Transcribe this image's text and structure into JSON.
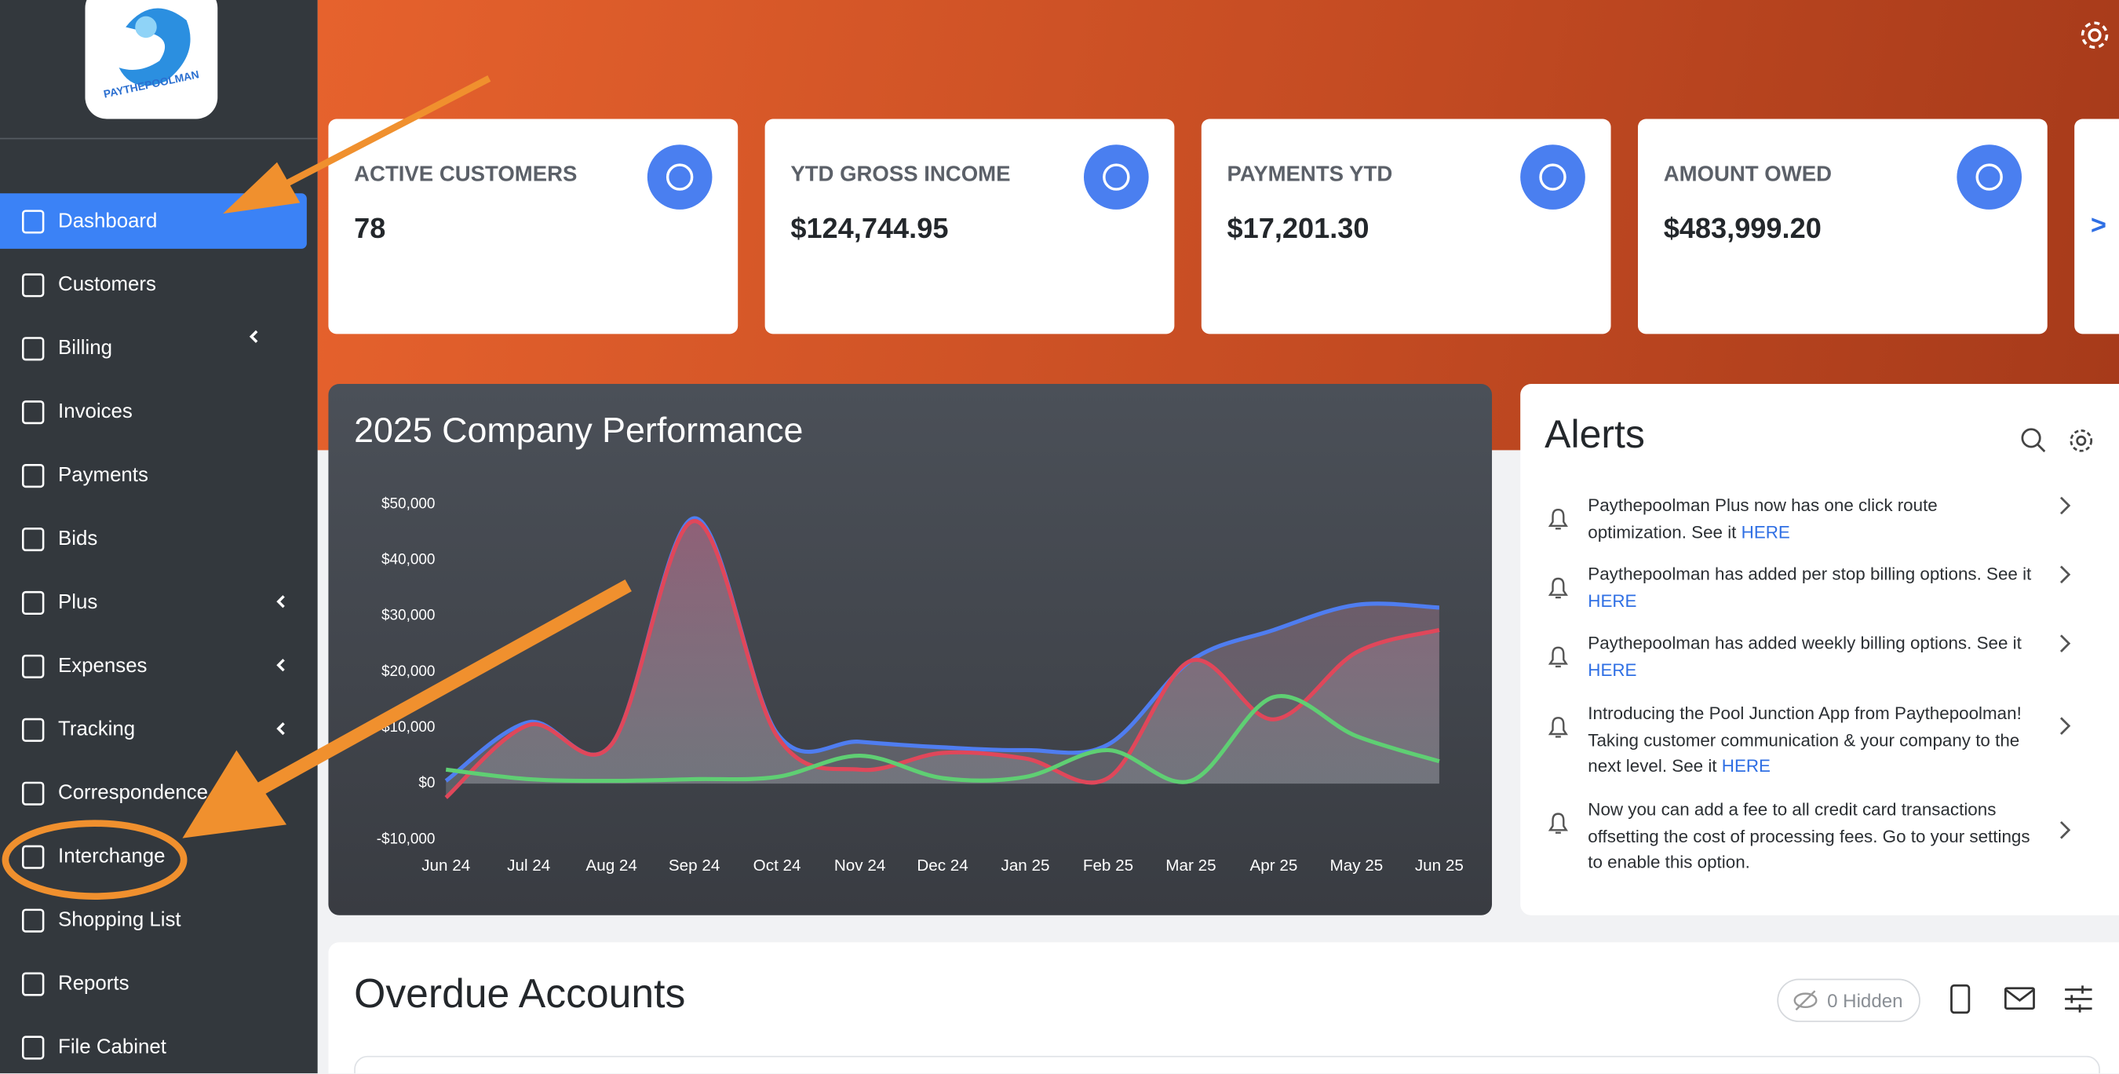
{
  "logo": {
    "text": "PAYTHEPOOLMAN"
  },
  "sidebar": {
    "items": [
      {
        "label": "Dashboard",
        "active": true
      },
      {
        "label": "Customers"
      },
      {
        "label": "Billing",
        "submenu": true
      },
      {
        "label": "Invoices"
      },
      {
        "label": "Payments"
      },
      {
        "label": "Bids"
      },
      {
        "label": "Plus",
        "submenu": true
      },
      {
        "label": "Expenses",
        "submenu": true
      },
      {
        "label": "Tracking",
        "submenu": true
      },
      {
        "label": "Correspondence"
      },
      {
        "label": "Interchange"
      },
      {
        "label": "Shopping List"
      },
      {
        "label": "Reports"
      },
      {
        "label": "File Cabinet"
      }
    ]
  },
  "cards": [
    {
      "title": "ACTIVE CUSTOMERS",
      "value": "78"
    },
    {
      "title": "YTD GROSS INCOME",
      "value": "$124,744.95"
    },
    {
      "title": "PAYMENTS YTD",
      "value": "$17,201.30"
    },
    {
      "title": "AMOUNT OWED",
      "value": "$483,999.20"
    }
  ],
  "cards_more": ">",
  "chart_data": {
    "type": "line",
    "title": "2025 Company Performance",
    "categories": [
      "Jun 24",
      "Jul 24",
      "Aug 24",
      "Sep 24",
      "Oct 24",
      "Nov 24",
      "Dec 24",
      "Jan 25",
      "Feb 25",
      "Mar 25",
      "Apr 25",
      "May 25",
      "Jun 25"
    ],
    "ylim": [
      -10000,
      50000
    ],
    "yticks": [
      {
        "value": -10000,
        "label": "-$10,000"
      },
      {
        "value": 0,
        "label": "$0"
      },
      {
        "value": 10000,
        "label": "$10,000"
      },
      {
        "value": 20000,
        "label": "$20,000"
      },
      {
        "value": 30000,
        "label": "$30,000"
      },
      {
        "value": 40000,
        "label": "$40,000"
      },
      {
        "value": 50000,
        "label": "$50,000"
      }
    ],
    "series": [
      {
        "color": "#4f7df0",
        "values": [
          500,
          11000,
          7000,
          47500,
          9000,
          7500,
          6500,
          6000,
          7000,
          22000,
          27500,
          32000,
          31500
        ]
      },
      {
        "color": "#e0475a",
        "values": [
          -2500,
          10500,
          7000,
          47000,
          8500,
          2500,
          5500,
          4500,
          1000,
          22000,
          11500,
          23500,
          27500
        ]
      },
      {
        "color": "#5fcf73",
        "values": [
          2500,
          800,
          500,
          800,
          1200,
          5000,
          1000,
          1200,
          6000,
          500,
          15500,
          8500,
          4000
        ]
      }
    ]
  },
  "alerts": {
    "title": "Alerts",
    "items": [
      {
        "text": "Paythepoolman Plus now has one click route optimization. See it",
        "link": "HERE"
      },
      {
        "text": "Paythepoolman has added per stop billing options. See it",
        "link": "HERE"
      },
      {
        "text": "Paythepoolman has added weekly billing options. See it",
        "link": "HERE"
      },
      {
        "text": "Introducing the Pool Junction App from Paythepoolman! Taking customer communication & your company to the next level. See it",
        "link": "HERE"
      },
      {
        "text": "Now you can add a fee to all credit card transactions offsetting the cost of processing fees. Go to your settings to enable this option."
      }
    ]
  },
  "overdue": {
    "title": "Overdue Accounts",
    "hidden_button": "0 Hidden"
  }
}
